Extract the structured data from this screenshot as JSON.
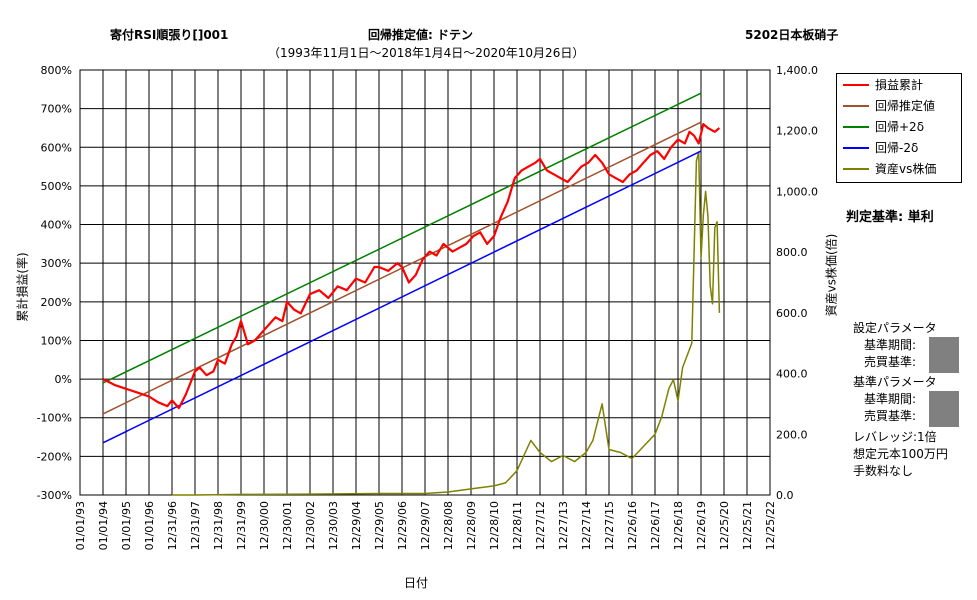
{
  "header": {
    "left_title": "寄付RSI順張り[]001",
    "center_title": "回帰推定値: ドテン",
    "right_title": "5202日本板硝子",
    "period": "（1993年11月1日～2018年1月4日～2020年10月26日）"
  },
  "chart_data": {
    "type": "line",
    "xlabel": "日付",
    "ylabel_left": "累計損益(率)",
    "ylabel_right": "資産vs株価(倍)",
    "x_tick_labels": [
      "01/01/93",
      "01/01/94",
      "01/01/95",
      "01/01/96",
      "12/31/96",
      "12/31/97",
      "12/31/98",
      "12/31/99",
      "12/30/00",
      "12/30/01",
      "12/30/02",
      "12/30/03",
      "12/29/04",
      "12/29/05",
      "12/29/06",
      "12/29/07",
      "12/28/08",
      "12/28/09",
      "12/28/10",
      "12/28/11",
      "12/27/12",
      "12/27/13",
      "12/27/14",
      "12/27/15",
      "12/26/16",
      "12/26/17",
      "12/26/18",
      "12/26/19",
      "12/25/20",
      "12/25/21",
      "12/25/22"
    ],
    "y_left_ticks": [
      "800%",
      "700%",
      "600%",
      "500%",
      "400%",
      "300%",
      "200%",
      "100%",
      "0%",
      "-100%",
      "-200%",
      "-300%"
    ],
    "y_right_ticks": [
      "1,400.0",
      "1,200.0",
      "1,000.0",
      "800.0",
      "600.0",
      "400.0",
      "200.0",
      "0.0"
    ],
    "ylim_left": [
      -300,
      800
    ],
    "ylim_right": [
      0,
      1400
    ],
    "xlim": [
      1993.0,
      2023.0
    ],
    "grid": true,
    "legend_position": "top-right",
    "series": [
      {
        "name": "損益累計",
        "color": "#ff0000",
        "axis": "left",
        "x": [
          1994.0,
          1994.5,
          1995.0,
          1995.5,
          1996.0,
          1996.4,
          1996.8,
          1997.0,
          1997.3,
          1997.6,
          1997.8,
          1998.0,
          1998.2,
          1998.5,
          1998.8,
          1999.0,
          1999.3,
          1999.6,
          1999.8,
          2000.0,
          2000.3,
          2000.6,
          2000.9,
          2001.2,
          2001.5,
          2001.8,
          2002.0,
          2002.3,
          2002.6,
          2003.0,
          2003.4,
          2003.8,
          2004.2,
          2004.6,
          2005.0,
          2005.4,
          2005.8,
          2006.0,
          2006.4,
          2006.8,
          2007.0,
          2007.3,
          2007.6,
          2007.9,
          2008.2,
          2008.5,
          2008.8,
          2009.2,
          2009.5,
          2009.8,
          2010.1,
          2010.4,
          2010.7,
          2011.0,
          2011.3,
          2011.6,
          2011.9,
          2012.2,
          2012.5,
          2012.8,
          2013.0,
          2013.3,
          2013.6,
          2013.9,
          2014.2,
          2014.5,
          2014.8,
          2015.1,
          2015.4,
          2015.7,
          2016.0,
          2016.3,
          2016.6,
          2016.9,
          2017.2,
          2017.5,
          2017.8,
          2018.1,
          2018.4,
          2018.7,
          2019.0,
          2019.3,
          2019.5,
          2019.7,
          2019.9,
          2020.1,
          2020.3,
          2020.6,
          2020.8
        ],
        "y": [
          0,
          -15,
          -25,
          -35,
          -45,
          -60,
          -70,
          -55,
          -75,
          -40,
          -10,
          20,
          30,
          10,
          20,
          50,
          40,
          90,
          110,
          150,
          90,
          100,
          120,
          140,
          160,
          150,
          200,
          180,
          170,
          220,
          230,
          210,
          240,
          230,
          260,
          250,
          290,
          290,
          280,
          300,
          290,
          250,
          270,
          310,
          330,
          320,
          350,
          330,
          340,
          350,
          370,
          380,
          350,
          370,
          420,
          460,
          520,
          540,
          550,
          560,
          570,
          540,
          530,
          520,
          510,
          530,
          550,
          560,
          580,
          560,
          530,
          520,
          510,
          530,
          540,
          560,
          580,
          590,
          570,
          600,
          620,
          610,
          640,
          630,
          610,
          660,
          650,
          640,
          650
        ]
      },
      {
        "name": "回帰推定値",
        "color": "#a0522d",
        "axis": "left",
        "x": [
          1994.0,
          2020.0
        ],
        "y": [
          -90,
          665
        ]
      },
      {
        "name": "回帰+2δ",
        "color": "#008000",
        "axis": "left",
        "x": [
          1994.0,
          2020.0
        ],
        "y": [
          -10,
          740
        ]
      },
      {
        "name": "回帰-2δ",
        "color": "#0000ff",
        "axis": "left",
        "x": [
          1994.0,
          2020.0
        ],
        "y": [
          -165,
          590
        ]
      },
      {
        "name": "資産vs株価",
        "color": "#808000",
        "axis": "right",
        "x": [
          1997.0,
          1998.0,
          2000.0,
          2003.0,
          2006.0,
          2008.0,
          2009.0,
          2010.0,
          2011.0,
          2011.5,
          2012.0,
          2012.3,
          2012.6,
          2013.0,
          2013.5,
          2014.0,
          2014.5,
          2015.0,
          2015.3,
          2015.5,
          2015.7,
          2016.0,
          2016.5,
          2017.0,
          2017.5,
          2018.0,
          2018.3,
          2018.6,
          2018.8,
          2019.0,
          2019.2,
          2019.4,
          2019.6,
          2019.8,
          2019.9,
          2020.0,
          2020.1,
          2020.2,
          2020.3,
          2020.4,
          2020.5,
          2020.6,
          2020.7,
          2020.8
        ],
        "y": [
          0,
          0,
          2,
          3,
          5,
          5,
          10,
          20,
          30,
          40,
          80,
          130,
          180,
          140,
          110,
          130,
          110,
          140,
          180,
          240,
          300,
          150,
          140,
          120,
          160,
          200,
          260,
          350,
          380,
          310,
          420,
          460,
          500,
          1100,
          1130,
          780,
          920,
          1000,
          920,
          690,
          630,
          880,
          900,
          600
        ]
      }
    ]
  },
  "legend": {
    "items": [
      {
        "label": "損益累計",
        "color": "#ff0000"
      },
      {
        "label": "回帰推定値",
        "color": "#a0522d"
      },
      {
        "label": "回帰+2δ",
        "color": "#008000"
      },
      {
        "label": "回帰-2δ",
        "color": "#0000ff"
      },
      {
        "label": "資産vs株価",
        "color": "#808000"
      }
    ]
  },
  "info": {
    "criterion": "判定基準: 単利",
    "settings_title": "設定パラメータ",
    "settings_period": "基準期間:",
    "settings_buysell": "売買基準:",
    "base_title": "基準パラメータ",
    "base_period": "基準期間:",
    "base_buysell": "売買基準:",
    "leverage": "レバレッジ:1倍",
    "capital": "想定元本100万円",
    "fee": "手数料なし"
  }
}
